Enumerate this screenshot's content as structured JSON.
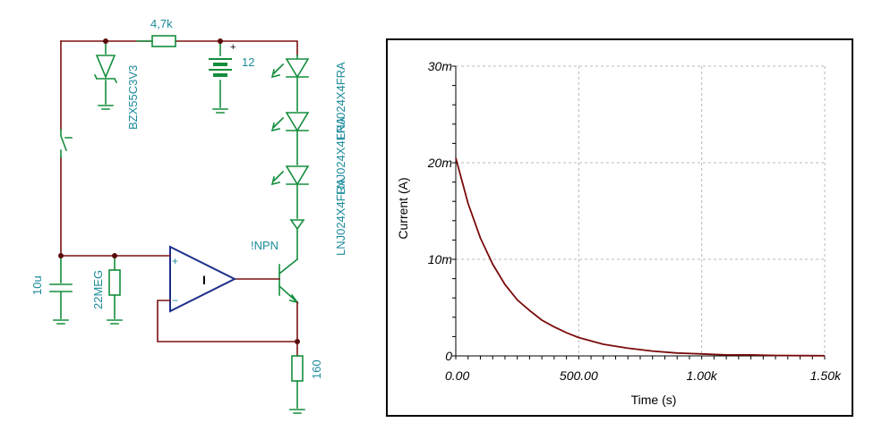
{
  "schematic": {
    "wire_color": "#7a1010",
    "part_color": "#138d3c",
    "opamp_color": "#1c2f8a",
    "label_color": "#1b8b9a",
    "labels": {
      "resistor_top": "4,7k",
      "zener": "BZX55C3V3",
      "battery": "12",
      "battery_plus": "+",
      "leds": "LNJ024X4FRA",
      "leds_overlap_1": "LNJ024X4FRA",
      "leds_overlap_2": "LNJ024X4FRA",
      "transistor": "!NPN",
      "capacitor": "10u",
      "resistor_mid": "22MEG",
      "resistor_bottom": "160",
      "opamp_plus": "+",
      "opamp_minus": "−",
      "opamp_mark": "I"
    }
  },
  "chart_data": {
    "type": "line",
    "xlabel": "Time (s)",
    "ylabel": "Current (A)",
    "xlim": [
      0,
      1500
    ],
    "ylim": [
      0,
      0.03
    ],
    "x_ticks": [
      0,
      500,
      1000,
      1500
    ],
    "x_tick_labels": [
      "0.00",
      "500.00",
      "1.00k",
      "1.50k"
    ],
    "y_ticks": [
      0,
      0.01,
      0.02,
      0.03
    ],
    "y_tick_labels": [
      "0",
      "10m",
      "20m",
      "30m"
    ],
    "grid": true,
    "line_color": "#7a0a0a",
    "series": [
      {
        "x": [
          0,
          50,
          100,
          150,
          200,
          250,
          300,
          350,
          400,
          450,
          500,
          600,
          700,
          800,
          900,
          1000,
          1100,
          1200,
          1300,
          1400,
          1500
        ],
        "y": [
          0.0205,
          0.0158,
          0.0122,
          0.0095,
          0.0074,
          0.0058,
          0.0047,
          0.0037,
          0.003,
          0.0024,
          0.0019,
          0.0012,
          0.0008,
          0.0005,
          0.0003,
          0.0002,
          0.0001,
          0.0001,
          5e-05,
          3e-05,
          2e-05
        ]
      }
    ]
  }
}
